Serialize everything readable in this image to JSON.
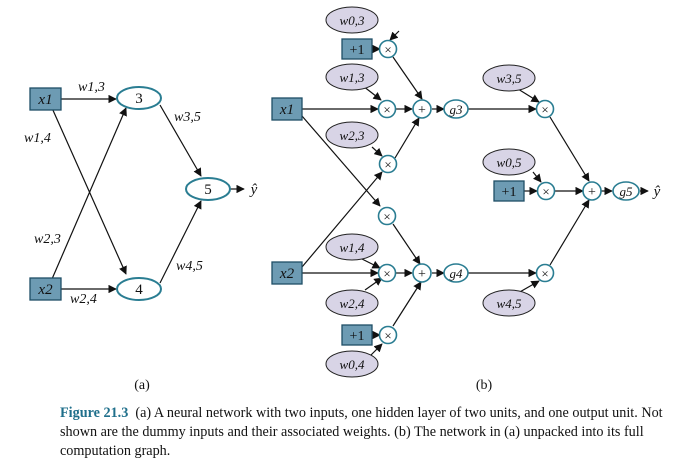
{
  "panel_a": {
    "sublabel": "(a)",
    "inputs": [
      "x1",
      "x2"
    ],
    "hidden_units": [
      "3",
      "4"
    ],
    "output_unit": "5",
    "output_symbol": "ŷ",
    "weights": {
      "w13": "w1,3",
      "w14": "w1,4",
      "w23": "w2,3",
      "w24": "w2,4",
      "w35": "w3,5",
      "w45": "w4,5"
    }
  },
  "panel_b": {
    "sublabel": "(b)",
    "inputs": [
      "x1",
      "x2"
    ],
    "bias": "+1",
    "times": "×",
    "plus": "+",
    "activations": [
      "g3",
      "g4",
      "g5"
    ],
    "output_symbol": "ŷ",
    "weights": {
      "w03": "w0,3",
      "w13": "w1,3",
      "w23": "w2,3",
      "w14": "w1,4",
      "w24": "w2,4",
      "w04": "w0,4",
      "w35": "w3,5",
      "w05": "w0,5",
      "w45": "w4,5"
    }
  },
  "caption": {
    "label": "Figure 21.3",
    "text": "(a) A neural network with two inputs, one hidden layer of two units, and one output unit. Not shown are the dummy inputs and their associated weights. (b) The network in (a) unpacked into its full computation graph."
  }
}
